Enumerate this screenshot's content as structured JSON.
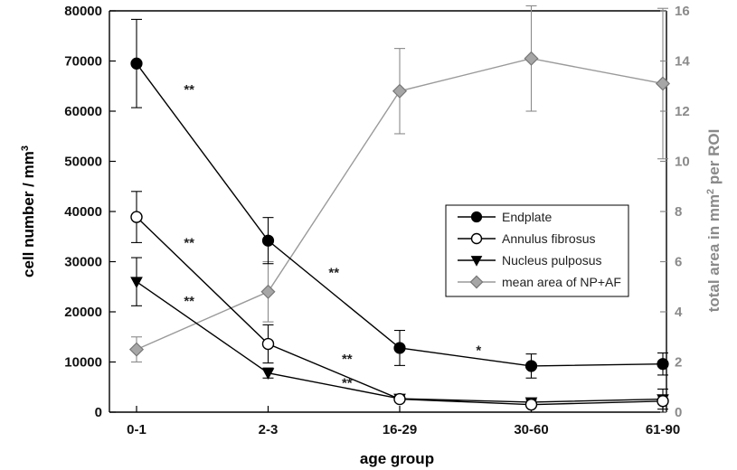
{
  "chart_data": {
    "type": "line",
    "xlabel": "age group",
    "ylabel_left": "cell number / mm",
    "ylabel_left_sup": "3",
    "ylabel_right_pre": "total area in mm",
    "ylabel_right_sup": "2",
    "ylabel_right_post": " per ROI",
    "categories": [
      "0-1",
      "2-3",
      "16-29",
      "30-60",
      "61-90"
    ],
    "ylim_left": [
      0,
      80000
    ],
    "ylim_right": [
      0,
      16
    ],
    "yticks_left": [
      "0",
      "10000",
      "20000",
      "30000",
      "40000",
      "50000",
      "60000",
      "70000",
      "80000"
    ],
    "yticks_right": [
      "0",
      "2",
      "4",
      "6",
      "8",
      "10",
      "12",
      "14",
      "16"
    ],
    "grid": false,
    "legend_position": "center-right",
    "series": [
      {
        "name": "Endplate",
        "axis": "left",
        "marker": "circle-filled",
        "color": "#000000",
        "values": [
          69500,
          34200,
          12800,
          9200,
          9600
        ],
        "errors": [
          8800,
          4600,
          3500,
          2400,
          2200
        ]
      },
      {
        "name": "Annulus fibrosus",
        "axis": "left",
        "marker": "circle-open",
        "color": "#000000",
        "values": [
          38900,
          13600,
          2600,
          1500,
          2200
        ],
        "errors": [
          5100,
          3800,
          400,
          300,
          500
        ]
      },
      {
        "name": "Nucleus pulposus",
        "axis": "left",
        "marker": "triangle-down",
        "color": "#000000",
        "values": [
          26000,
          7800,
          2700,
          2000,
          2600
        ],
        "errors": [
          4800,
          1000,
          400,
          400,
          2000
        ]
      },
      {
        "name": "mean area of NP+AF",
        "axis": "right",
        "marker": "diamond",
        "color": "#8a8a8a",
        "values": [
          2.5,
          4.8,
          12.8,
          14.1,
          13.1
        ],
        "errors": [
          0.5,
          1.2,
          1.7,
          2.1,
          3.0
        ]
      }
    ],
    "annotations": [
      {
        "text": "**",
        "x": 0.4,
        "y": 64500
      },
      {
        "text": "**",
        "x": 0.4,
        "y": 34000
      },
      {
        "text": "**",
        "x": 0.4,
        "y": 22300
      },
      {
        "text": "**",
        "x": 1.5,
        "y": 28000
      },
      {
        "text": "**",
        "x": 1.6,
        "y": 10800
      },
      {
        "text": "**",
        "x": 1.6,
        "y": 6000
      },
      {
        "text": "*",
        "x": 2.6,
        "y": 12500
      }
    ]
  }
}
